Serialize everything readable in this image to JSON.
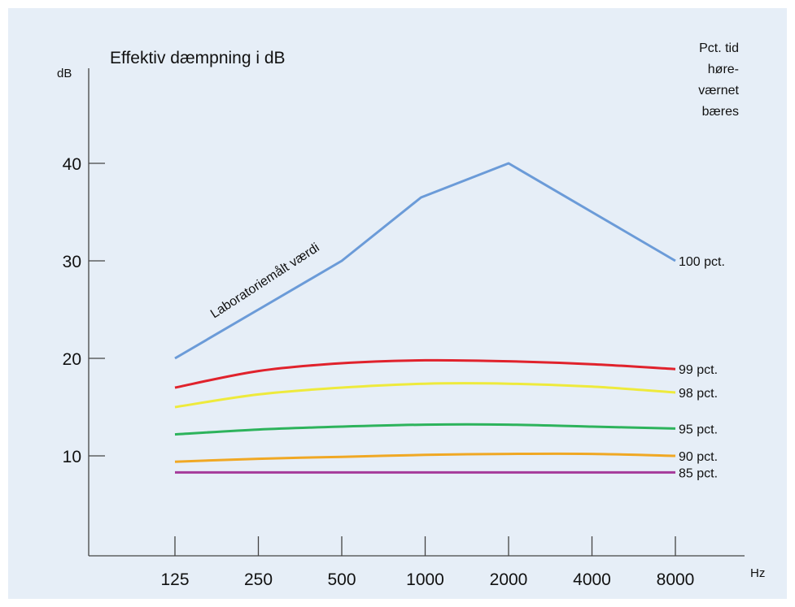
{
  "chart_data": {
    "type": "line",
    "title": "Effektiv dæmpning i dB",
    "ylabel": "dB",
    "xlabel": "Hz",
    "ylim": [
      0,
      50
    ],
    "yticks": [
      10,
      20,
      30,
      40
    ],
    "categories": [
      "125",
      "250",
      "500",
      "1000",
      "2000",
      "4000",
      "8000"
    ],
    "legend_title": [
      "Pct. tid",
      "høre-",
      "værnet",
      "bæres"
    ],
    "annotation": "Laboratoriemålt værdi",
    "grid": false,
    "series": [
      {
        "name": "100 pct.",
        "color": "#6b9bd8",
        "values": [
          20,
          25,
          30,
          36.5,
          40,
          35,
          30
        ],
        "x": [
          0,
          1,
          2,
          2.95,
          4,
          5,
          6
        ],
        "shape": "linear"
      },
      {
        "name": "99 pct.",
        "color": "#e0222c",
        "values": [
          17,
          18.7,
          19.5,
          19.8,
          19.7,
          19.4,
          18.9
        ]
      },
      {
        "name": "98 pct.",
        "color": "#eeea3c",
        "values": [
          15,
          16.3,
          17,
          17.4,
          17.4,
          17.1,
          16.5
        ]
      },
      {
        "name": "95 pct.",
        "color": "#2db35c",
        "values": [
          12.2,
          12.7,
          13,
          13.2,
          13.2,
          13,
          12.8
        ]
      },
      {
        "name": "90 pct.",
        "color": "#f0a824",
        "values": [
          9.4,
          9.7,
          9.9,
          10.1,
          10.2,
          10.2,
          10
        ]
      },
      {
        "name": "85 pct.",
        "color": "#a53a9a",
        "values": [
          8.3,
          8.3,
          8.3,
          8.3,
          8.3,
          8.3,
          8.3
        ]
      }
    ]
  }
}
